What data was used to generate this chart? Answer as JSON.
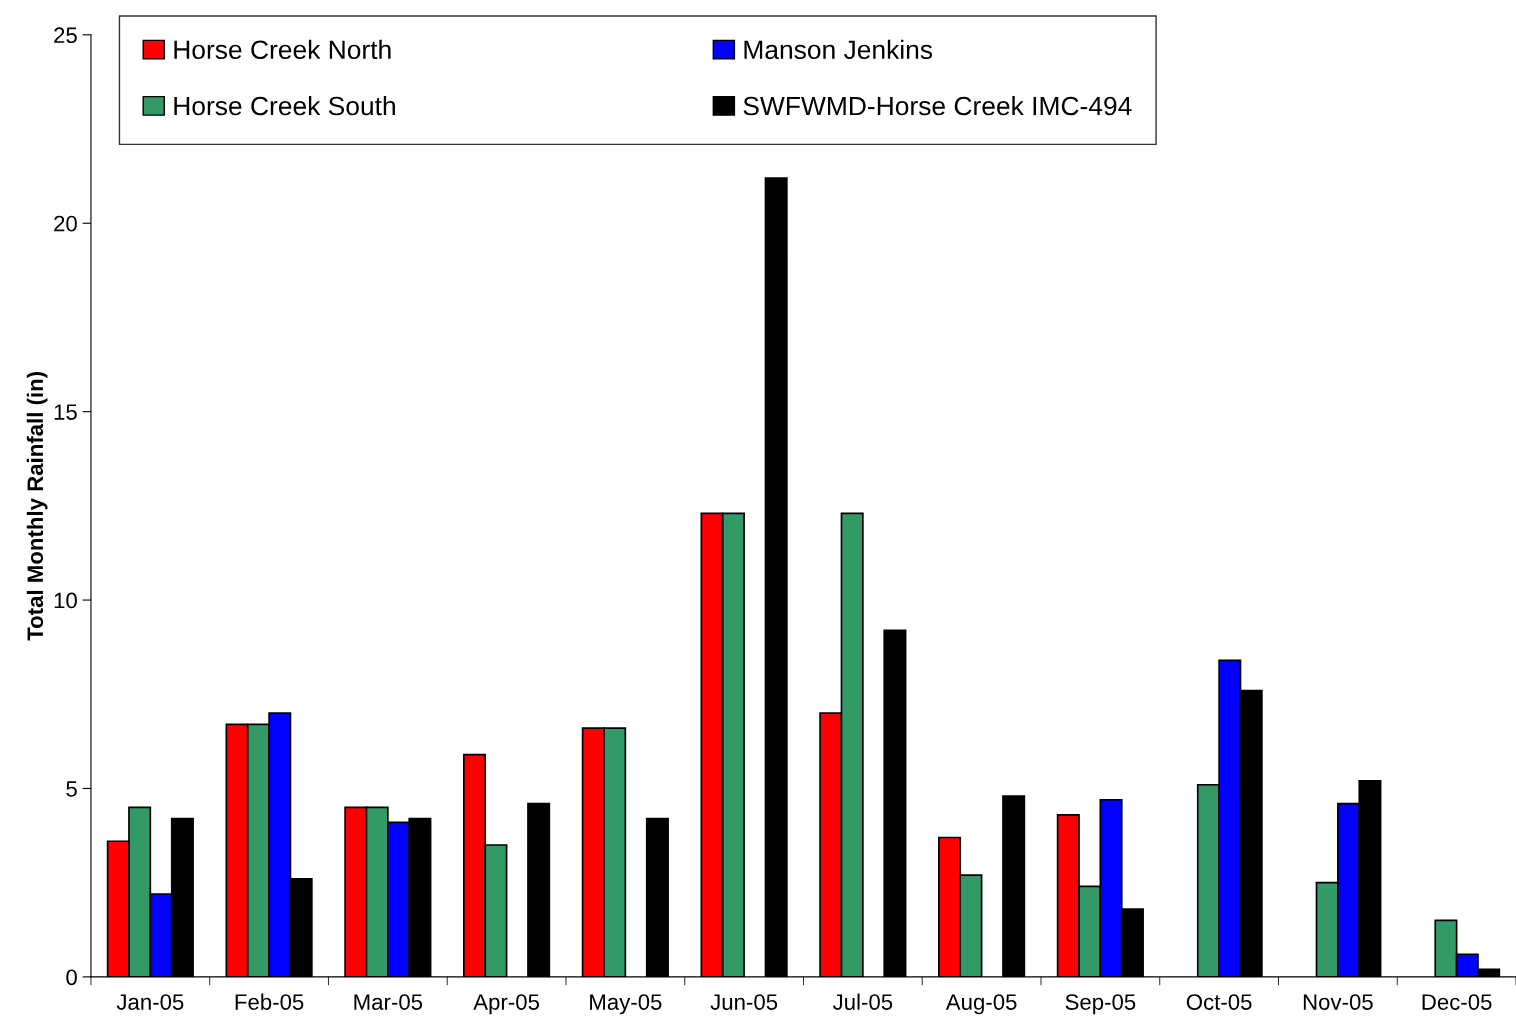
{
  "chart_data": {
    "type": "bar",
    "ylabel": "Total Monthly Rainfall (in)",
    "categories": [
      "Jan-05",
      "Feb-05",
      "Mar-05",
      "Apr-05",
      "May-05",
      "Jun-05",
      "Jul-05",
      "Aug-05",
      "Sep-05",
      "Oct-05",
      "Nov-05",
      "Dec-05"
    ],
    "series": [
      {
        "name": "Horse Creek North",
        "color": "#ff0000",
        "values": [
          3.6,
          6.7,
          4.5,
          5.9,
          6.6,
          12.3,
          7.0,
          3.7,
          4.3,
          null,
          null,
          null
        ]
      },
      {
        "name": "Horse Creek South",
        "color": "#339966",
        "values": [
          4.5,
          6.7,
          4.5,
          3.5,
          6.6,
          12.3,
          12.3,
          2.7,
          2.4,
          5.1,
          2.5,
          1.5
        ]
      },
      {
        "name": "Manson Jenkins",
        "color": "#0000ff",
        "values": [
          2.2,
          7.0,
          4.1,
          null,
          null,
          null,
          null,
          null,
          4.7,
          8.4,
          4.6,
          0.6
        ]
      },
      {
        "name": "SWFWMD-Horse Creek IMC-494",
        "color": "#000000",
        "values": [
          4.2,
          2.6,
          4.2,
          4.6,
          4.2,
          21.2,
          9.2,
          4.8,
          1.8,
          7.6,
          5.2,
          0.2
        ]
      }
    ],
    "ylim": [
      0,
      25
    ],
    "yticks": [
      0,
      5,
      10,
      15,
      20,
      25
    ],
    "grid": false,
    "legend": "top"
  }
}
